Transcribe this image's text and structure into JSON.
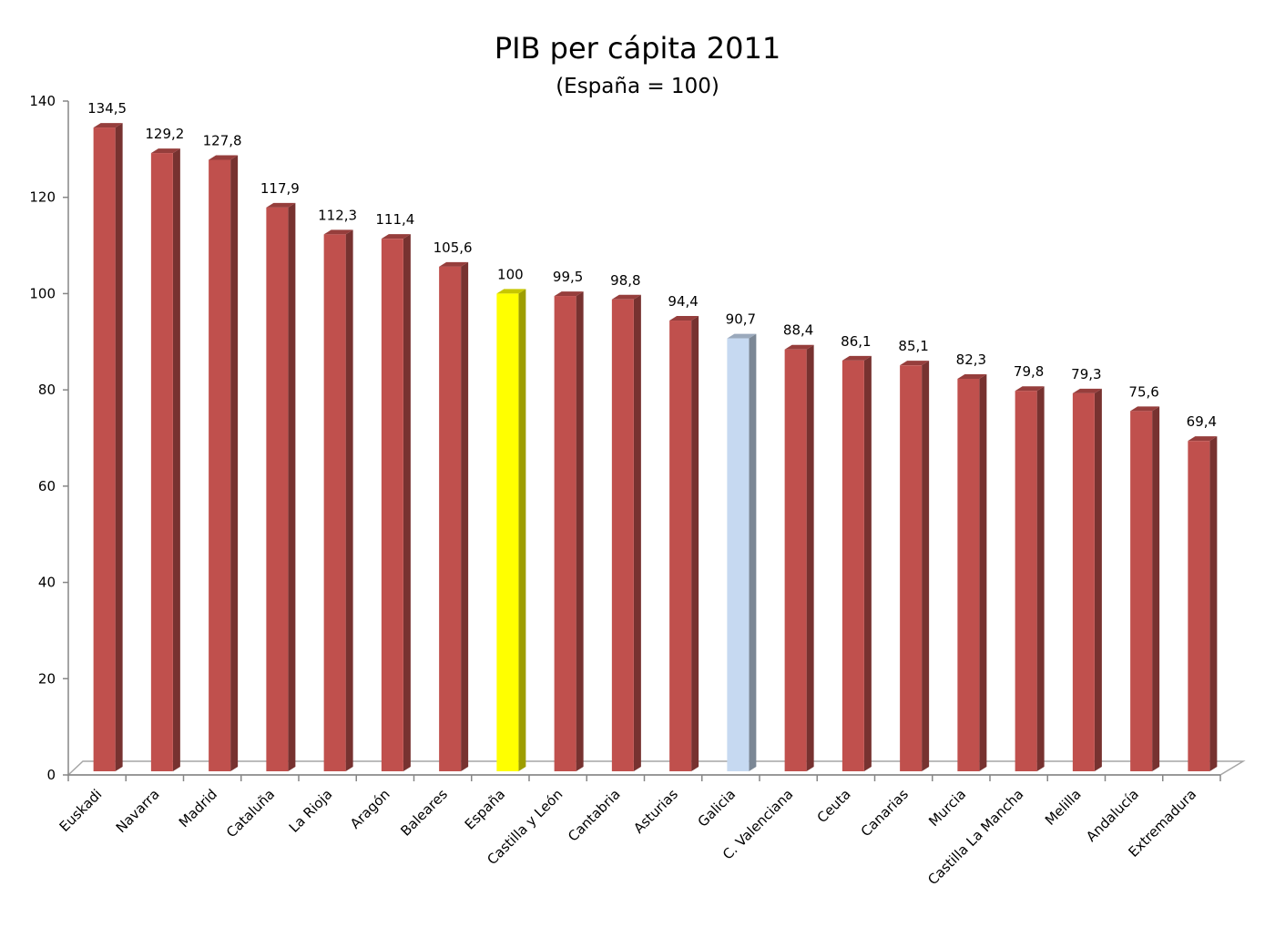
{
  "chart_data": {
    "type": "bar",
    "title": "PIB per cápita 2011",
    "subtitle": "(España = 100)",
    "xlabel": "",
    "ylabel": "",
    "ylim": [
      0,
      140
    ],
    "yticks": [
      0,
      20,
      40,
      60,
      80,
      100,
      120,
      140
    ],
    "grid": false,
    "legend": "none",
    "categories": [
      "Euskadi",
      "Navarra",
      "Madrid",
      "Cataluña",
      "La Rioja",
      "Aragón",
      "Baleares",
      "España",
      "Castilla y León",
      "Cantabria",
      "Asturias",
      "Galicia",
      "C. Valenciana",
      "Ceuta",
      "Canarias",
      "Murcia",
      "Castilla La Mancha",
      "Melilla",
      "Andalucía",
      "Extremadura"
    ],
    "values": [
      134.5,
      129.2,
      127.8,
      117.9,
      112.3,
      111.4,
      105.6,
      100,
      99.5,
      98.8,
      94.4,
      90.7,
      88.4,
      86.1,
      85.1,
      82.3,
      79.8,
      79.3,
      75.6,
      69.4
    ],
    "value_labels": [
      "134,5",
      "129,2",
      "127,8",
      "117,9",
      "112,3",
      "111,4",
      "105,6",
      "100",
      "99,5",
      "98,8",
      "94,4",
      "90,7",
      "88,4",
      "86,1",
      "85,1",
      "82,3",
      "79,8",
      "79,3",
      "75,6",
      "69,4"
    ],
    "colors": {
      "default": "#c0504d",
      "España": "#ffff00",
      "Galicia": "#c6d9f1"
    }
  }
}
